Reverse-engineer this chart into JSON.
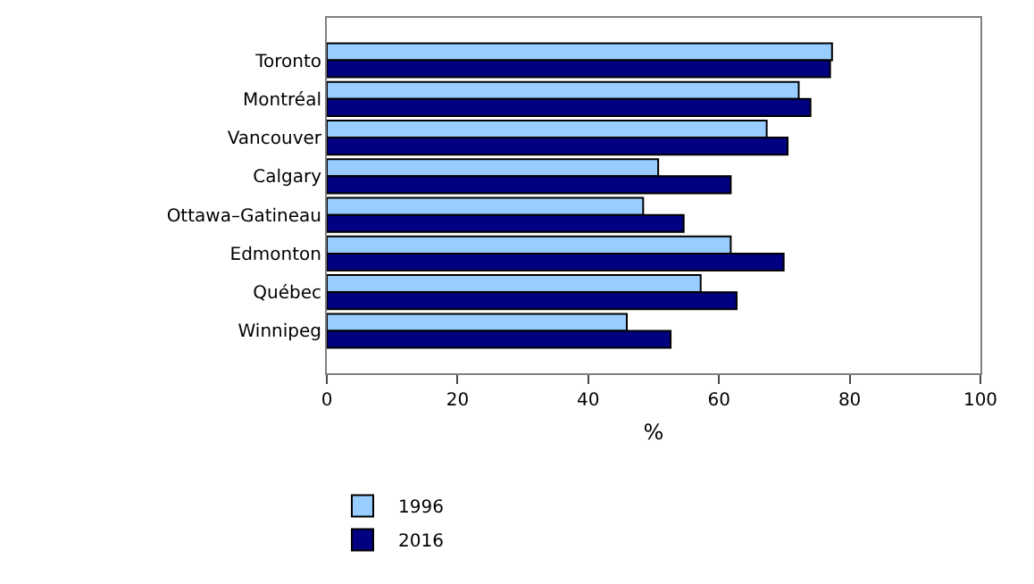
{
  "chart_data": {
    "type": "bar",
    "orientation": "horizontal",
    "xlabel": "%",
    "categories": [
      "Toronto",
      "Montréal",
      "Vancouver",
      "Calgary",
      "Ottawa–Gatineau",
      "Edmonton",
      "Québec",
      "Winnipeg"
    ],
    "series": [
      {
        "name": "1996",
        "color": "#99ccff",
        "values": [
          77.3,
          72.2,
          67.3,
          50.7,
          48.4,
          61.8,
          57.2,
          45.9
        ]
      },
      {
        "name": "2016",
        "color": "#000080",
        "values": [
          77.0,
          74.0,
          70.5,
          61.8,
          54.6,
          69.9,
          62.7,
          52.6
        ]
      }
    ],
    "xlim": [
      0,
      100
    ],
    "xticks": [
      0,
      20,
      40,
      60,
      80,
      100
    ],
    "legend": "bottom"
  }
}
